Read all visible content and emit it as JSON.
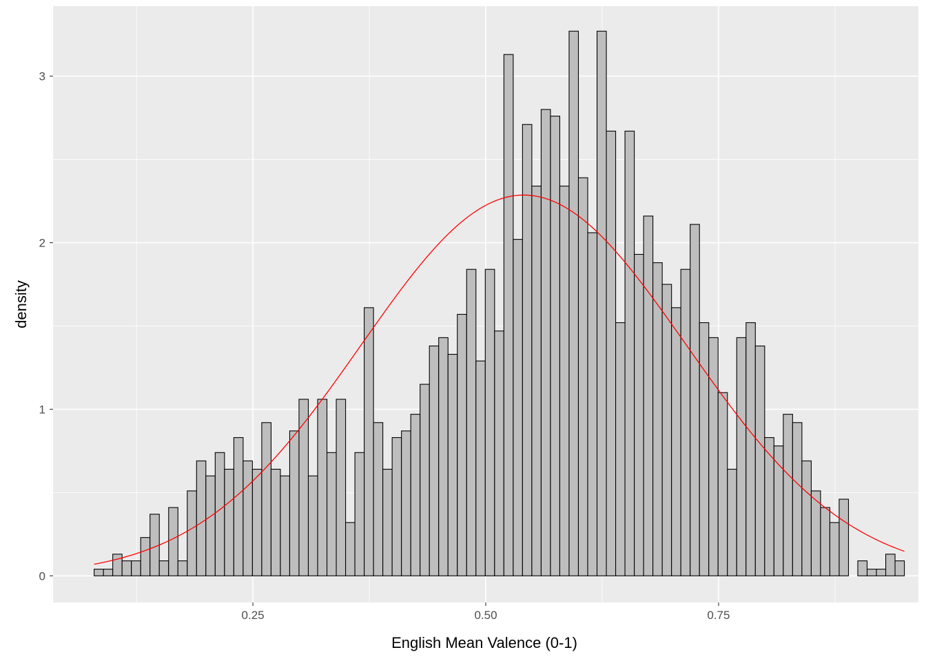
{
  "chart_data": {
    "type": "histogram",
    "xlabel": "English Mean Valence (0-1)",
    "ylabel": "density",
    "xlim": [
      0.0354,
      0.9646
    ],
    "ylim": [
      -0.16,
      3.42
    ],
    "x_ticks": [
      0.25,
      0.5,
      0.75
    ],
    "x_tick_labels": [
      "0.25",
      "0.50",
      "0.75"
    ],
    "y_ticks": [
      0,
      1,
      2,
      3
    ],
    "y_tick_labels": [
      "0",
      "1",
      "2",
      "3"
    ],
    "grid": true,
    "bin_start": 0.0795,
    "bin_width": 0.01,
    "densities": [
      0.04,
      0.04,
      0.13,
      0.09,
      0.09,
      0.23,
      0.37,
      0.09,
      0.41,
      0.09,
      0.51,
      0.69,
      0.6,
      0.74,
      0.64,
      0.83,
      0.69,
      0.64,
      0.92,
      0.64,
      0.6,
      0.87,
      1.06,
      0.6,
      1.06,
      0.74,
      1.06,
      0.32,
      0.74,
      1.61,
      0.92,
      0.64,
      0.83,
      0.87,
      0.97,
      1.15,
      1.38,
      1.43,
      1.33,
      1.57,
      1.84,
      1.29,
      1.84,
      1.47,
      3.13,
      2.02,
      2.71,
      2.34,
      2.8,
      2.76,
      2.34,
      3.27,
      2.39,
      2.06,
      3.27,
      2.67,
      1.52,
      2.67,
      1.93,
      2.16,
      1.88,
      1.75,
      1.61,
      1.84,
      2.11,
      1.52,
      1.43,
      1.1,
      0.64,
      1.43,
      1.52,
      1.38,
      0.83,
      0.78,
      0.97,
      0.92,
      0.69,
      0.51,
      0.41,
      0.32,
      0.46,
      0.0,
      0.09,
      0.04,
      0.04,
      0.13,
      0.09
    ],
    "bar_fill": "#bebebe",
    "bar_outline": "#000000",
    "density_curve": {
      "color": "#ff0000",
      "mean": 0.5408,
      "sd": 0.1745,
      "x_range": [
        0.0795,
        0.9495
      ]
    },
    "panel_background": "#ebebeb",
    "grid_color": "#ffffff"
  }
}
